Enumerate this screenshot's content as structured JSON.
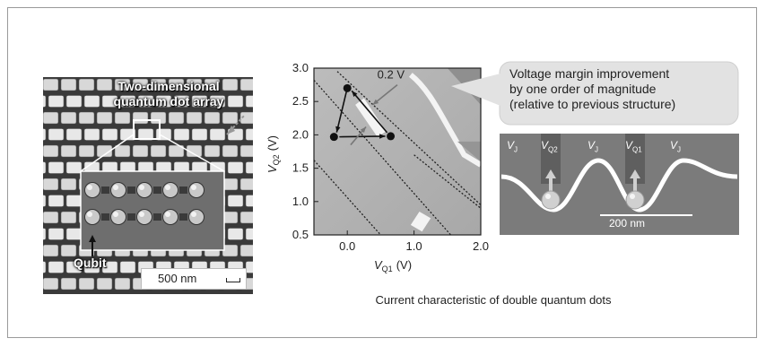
{
  "sem_image": {
    "title_line1": "Two-dimensional",
    "title_line2": "quantum dot array",
    "qubit_label": "Qubit",
    "scale_label": "500 nm"
  },
  "chart_data": {
    "type": "scatter",
    "xlabel_main": "V",
    "xlabel_sub": "Q1",
    "xlabel_unit": "(V)",
    "ylabel_main": "V",
    "ylabel_sub": "Q2",
    "ylabel_unit": "(V)",
    "xlim": [
      -0.5,
      2.0
    ],
    "ylim": [
      0.5,
      3.0
    ],
    "xticks": [
      "0.0",
      "1.0",
      "2.0"
    ],
    "yticks": [
      "0.5",
      "1.0",
      "1.5",
      "2.0",
      "2.5",
      "3.0"
    ],
    "points": [
      {
        "x": 0.0,
        "y": 2.7
      },
      {
        "x": -0.2,
        "y": 1.97
      },
      {
        "x": 0.65,
        "y": 1.98
      }
    ],
    "annotation": "0.2 V",
    "caption": "Current characteristic of double quantum dots"
  },
  "callout": {
    "line1": "Voltage margin improvement",
    "line2": "by one order of magnitude",
    "line3": "(relative to previous structure)"
  },
  "inset": {
    "labels": [
      {
        "main": "V",
        "sub": "J"
      },
      {
        "main": "V",
        "sub": "Q2"
      },
      {
        "main": "V",
        "sub": "J"
      },
      {
        "main": "V",
        "sub": "Q1"
      },
      {
        "main": "V",
        "sub": "J"
      }
    ],
    "scale_label": "200 nm"
  }
}
